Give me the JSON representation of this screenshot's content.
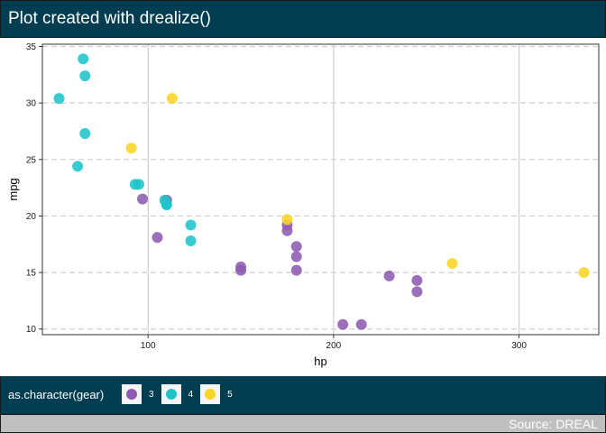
{
  "title": "Plot created with drealize()",
  "caption": "Source: DREAL",
  "legend": {
    "title": "as.character(gear)",
    "items": [
      {
        "label": "3",
        "color": "#8e5bb0"
      },
      {
        "label": "4",
        "color": "#1ec4c8"
      },
      {
        "label": "5",
        "color": "#fad524"
      }
    ]
  },
  "chart_data": {
    "type": "scatter",
    "xlabel": "hp",
    "ylabel": "mpg",
    "xlim": [
      43,
      343
    ],
    "ylim": [
      9.5,
      35.2
    ],
    "x_ticks": [
      100,
      200,
      300
    ],
    "y_ticks": [
      10,
      15,
      20,
      25,
      30,
      35
    ],
    "grid": true,
    "legend_position": "bottom",
    "series": [
      {
        "name": "3",
        "color": "#8e5bb0",
        "points": [
          [
            110,
            21.4
          ],
          [
            175,
            18.7
          ],
          [
            105,
            18.1
          ],
          [
            245,
            14.3
          ],
          [
            180,
            16.4
          ],
          [
            180,
            17.3
          ],
          [
            180,
            15.2
          ],
          [
            205,
            10.4
          ],
          [
            215,
            10.4
          ],
          [
            230,
            14.7
          ],
          [
            97,
            21.5
          ],
          [
            150,
            15.5
          ],
          [
            150,
            15.2
          ],
          [
            245,
            13.3
          ],
          [
            175,
            19.2
          ]
        ]
      },
      {
        "name": "4",
        "color": "#1ec4c8",
        "points": [
          [
            110,
            21.0
          ],
          [
            110,
            21.0
          ],
          [
            93,
            22.8
          ],
          [
            62,
            24.4
          ],
          [
            95,
            22.8
          ],
          [
            123,
            19.2
          ],
          [
            123,
            17.8
          ],
          [
            66,
            32.4
          ],
          [
            52,
            30.4
          ],
          [
            65,
            33.9
          ],
          [
            66,
            27.3
          ],
          [
            109,
            21.4
          ]
        ]
      },
      {
        "name": "5",
        "color": "#fad524",
        "points": [
          [
            91,
            26.0
          ],
          [
            113,
            30.4
          ],
          [
            264,
            15.8
          ],
          [
            175,
            19.7
          ],
          [
            335,
            15.0
          ]
        ]
      }
    ]
  }
}
